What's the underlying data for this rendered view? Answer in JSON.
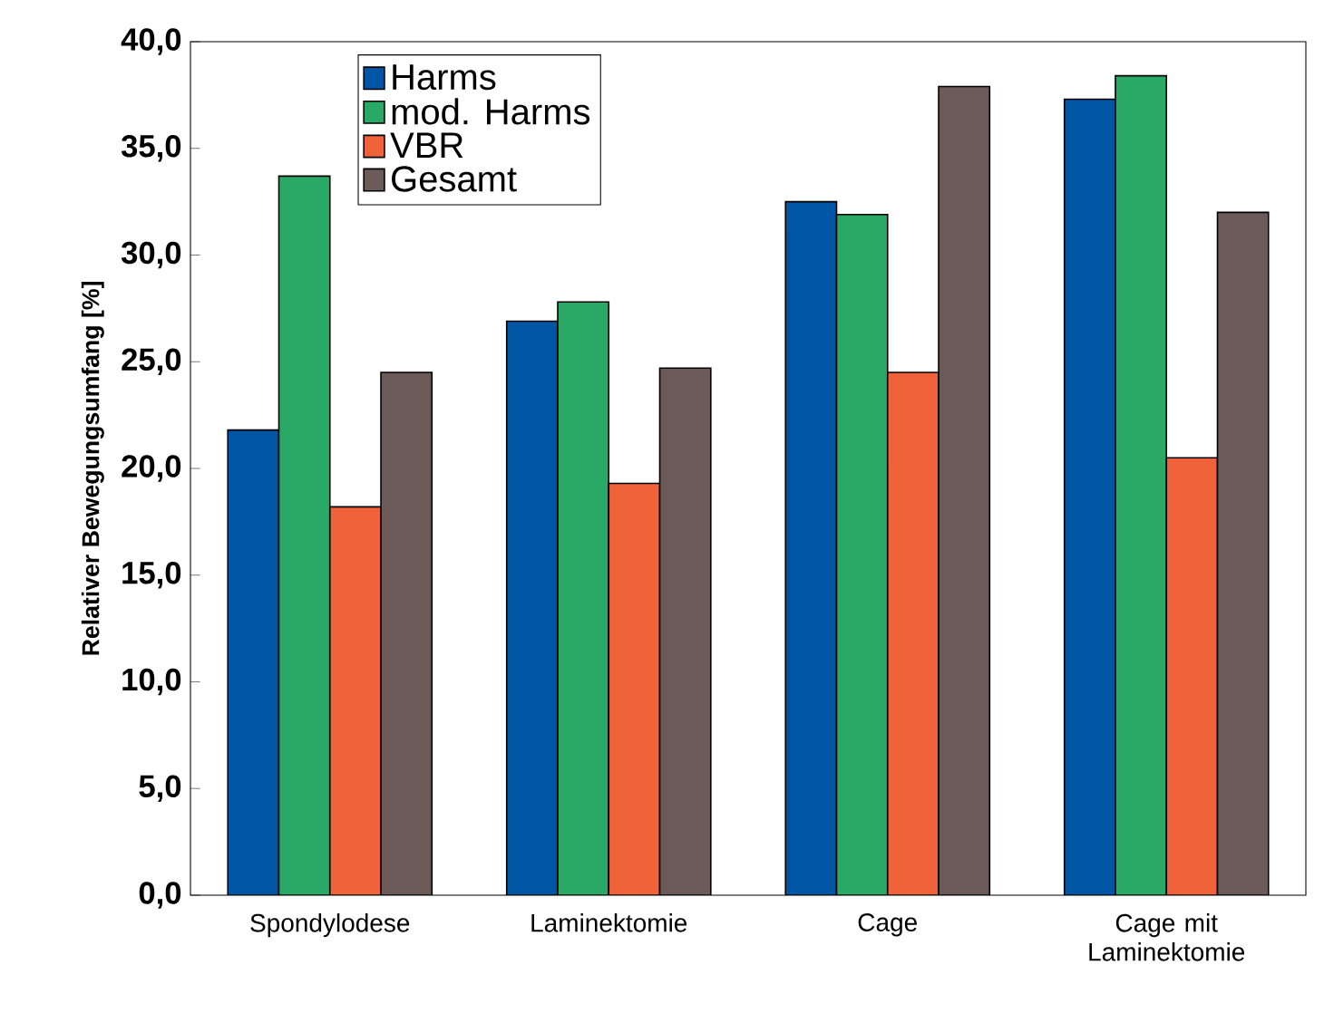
{
  "chart_data": {
    "type": "bar",
    "ylabel": "Relativer Bewegungsumfang [%]",
    "categories": [
      "Spondylodese",
      "Laminektomie",
      "Cage",
      "Cage mit Laminektomie"
    ],
    "series": [
      {
        "name": "Harms",
        "color": "#0055a5",
        "values": [
          21.8,
          26.9,
          32.5,
          37.3
        ]
      },
      {
        "name": "mod. Harms",
        "color": "#2aa866",
        "values": [
          33.7,
          27.8,
          31.9,
          38.4
        ]
      },
      {
        "name": "VBR",
        "color": "#f0623a",
        "values": [
          18.2,
          19.3,
          24.5,
          20.5
        ]
      },
      {
        "name": "Gesamt",
        "color": "#6b5a58",
        "values": [
          24.5,
          24.7,
          37.9,
          32.0
        ]
      }
    ],
    "ylim": [
      0,
      40
    ],
    "yticks": [
      {
        "value": 0,
        "label": "0,0"
      },
      {
        "value": 5,
        "label": "5,0"
      },
      {
        "value": 10,
        "label": "10,0"
      },
      {
        "value": 15,
        "label": "15,0"
      },
      {
        "value": 20,
        "label": "20,0"
      },
      {
        "value": 25,
        "label": "25,0"
      },
      {
        "value": 30,
        "label": "30,0"
      },
      {
        "value": 35,
        "label": "35,0"
      },
      {
        "value": 40,
        "label": "40,0"
      }
    ],
    "legend": "top left",
    "grid": false
  }
}
